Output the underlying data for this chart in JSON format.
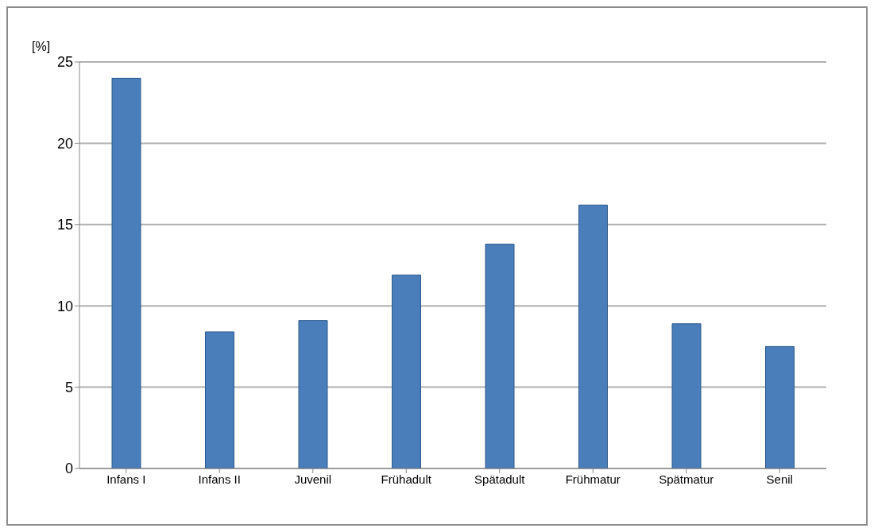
{
  "chart_data": {
    "type": "bar",
    "ylabel": "[%]",
    "categories": [
      "Infans I",
      "Infans II",
      "Juvenil",
      "Frühadult",
      "Spätadult",
      "Frühmatur",
      "Spätmatur",
      "Senil"
    ],
    "values": [
      24.0,
      8.4,
      9.1,
      11.9,
      13.8,
      16.2,
      8.9,
      7.5
    ],
    "color": "#4a7ebb",
    "ylim": [
      0,
      25
    ],
    "yticks": [
      0,
      5,
      10,
      15,
      20,
      25
    ],
    "grid": "y",
    "legend": false
  }
}
